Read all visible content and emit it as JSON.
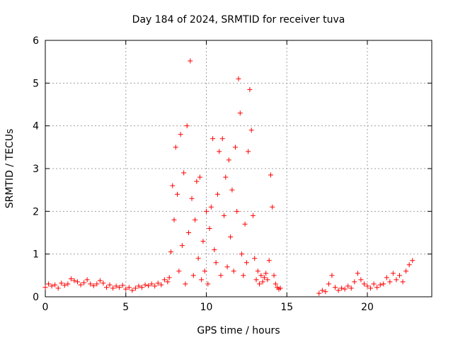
{
  "chart_data": {
    "type": "scatter",
    "title": "Day 184 of 2024, SRMTID for receiver tuva",
    "xlabel": "GPS time / hours",
    "ylabel": "SRMTID / TECUs",
    "xlim": [
      0,
      24
    ],
    "ylim": [
      0,
      6
    ],
    "xticks": [
      0,
      5,
      10,
      15,
      20
    ],
    "xtick_labels": [
      "0",
      "5",
      "10",
      "15",
      "20"
    ],
    "yticks": [
      0,
      1,
      2,
      3,
      4,
      5,
      6
    ],
    "ytick_labels": [
      "0",
      "1",
      "2",
      "3",
      "4",
      "5",
      "6"
    ],
    "grid": true,
    "marker": "+",
    "series": [
      {
        "name": "SRMTID",
        "color": "#ff0000",
        "points": [
          [
            0.0,
            0.22
          ],
          [
            0.2,
            0.3
          ],
          [
            0.4,
            0.25
          ],
          [
            0.6,
            0.28
          ],
          [
            0.8,
            0.2
          ],
          [
            1.0,
            0.32
          ],
          [
            1.2,
            0.27
          ],
          [
            1.4,
            0.3
          ],
          [
            1.6,
            0.42
          ],
          [
            1.8,
            0.38
          ],
          [
            2.0,
            0.35
          ],
          [
            2.2,
            0.28
          ],
          [
            2.4,
            0.33
          ],
          [
            2.6,
            0.4
          ],
          [
            2.8,
            0.3
          ],
          [
            3.0,
            0.26
          ],
          [
            3.2,
            0.3
          ],
          [
            3.4,
            0.38
          ],
          [
            3.6,
            0.32
          ],
          [
            3.8,
            0.22
          ],
          [
            4.0,
            0.28
          ],
          [
            4.2,
            0.2
          ],
          [
            4.4,
            0.25
          ],
          [
            4.6,
            0.22
          ],
          [
            4.8,
            0.27
          ],
          [
            5.0,
            0.18
          ],
          [
            5.2,
            0.22
          ],
          [
            5.4,
            0.15
          ],
          [
            5.6,
            0.2
          ],
          [
            5.8,
            0.25
          ],
          [
            6.0,
            0.22
          ],
          [
            6.2,
            0.28
          ],
          [
            6.4,
            0.26
          ],
          [
            6.6,
            0.3
          ],
          [
            6.8,
            0.25
          ],
          [
            7.0,
            0.32
          ],
          [
            7.2,
            0.28
          ],
          [
            7.4,
            0.4
          ],
          [
            7.6,
            0.35
          ],
          [
            7.7,
            0.45
          ],
          [
            7.8,
            1.05
          ],
          [
            7.9,
            2.6
          ],
          [
            8.0,
            1.8
          ],
          [
            8.1,
            3.5
          ],
          [
            8.2,
            2.4
          ],
          [
            8.3,
            0.6
          ],
          [
            8.4,
            3.8
          ],
          [
            8.5,
            1.2
          ],
          [
            8.6,
            2.9
          ],
          [
            8.7,
            0.3
          ],
          [
            8.8,
            4.0
          ],
          [
            8.9,
            1.5
          ],
          [
            9.0,
            5.52
          ],
          [
            9.1,
            2.3
          ],
          [
            9.2,
            0.5
          ],
          [
            9.3,
            1.8
          ],
          [
            9.4,
            2.7
          ],
          [
            9.5,
            0.9
          ],
          [
            9.6,
            2.8
          ],
          [
            9.7,
            0.4
          ],
          [
            9.8,
            1.3
          ],
          [
            9.9,
            0.6
          ],
          [
            10.0,
            2.0
          ],
          [
            10.1,
            0.3
          ],
          [
            10.2,
            1.6
          ],
          [
            10.3,
            2.1
          ],
          [
            10.4,
            3.7
          ],
          [
            10.5,
            1.1
          ],
          [
            10.6,
            0.8
          ],
          [
            10.7,
            2.4
          ],
          [
            10.8,
            3.4
          ],
          [
            10.9,
            0.5
          ],
          [
            11.0,
            3.7
          ],
          [
            11.1,
            1.9
          ],
          [
            11.2,
            2.8
          ],
          [
            11.3,
            0.7
          ],
          [
            11.4,
            3.2
          ],
          [
            11.5,
            1.4
          ],
          [
            11.6,
            2.5
          ],
          [
            11.7,
            0.6
          ],
          [
            11.8,
            3.5
          ],
          [
            11.9,
            2.0
          ],
          [
            12.0,
            5.1
          ],
          [
            12.1,
            4.3
          ],
          [
            12.2,
            1.0
          ],
          [
            12.3,
            0.5
          ],
          [
            12.4,
            1.7
          ],
          [
            12.5,
            0.8
          ],
          [
            12.6,
            3.4
          ],
          [
            12.7,
            4.85
          ],
          [
            12.8,
            3.9
          ],
          [
            12.9,
            1.9
          ],
          [
            13.0,
            0.9
          ],
          [
            13.1,
            0.4
          ],
          [
            13.2,
            0.6
          ],
          [
            13.3,
            0.3
          ],
          [
            13.4,
            0.5
          ],
          [
            13.5,
            0.35
          ],
          [
            13.6,
            0.45
          ],
          [
            13.7,
            0.55
          ],
          [
            13.8,
            0.4
          ],
          [
            13.9,
            0.85
          ],
          [
            14.0,
            2.85
          ],
          [
            14.1,
            2.1
          ],
          [
            14.2,
            0.5
          ],
          [
            14.3,
            0.3
          ],
          [
            14.4,
            0.22
          ],
          [
            14.5,
            0.18
          ],
          [
            14.6,
            0.2
          ],
          [
            17.0,
            0.08
          ],
          [
            17.2,
            0.15
          ],
          [
            17.4,
            0.12
          ],
          [
            17.6,
            0.3
          ],
          [
            17.8,
            0.5
          ],
          [
            18.0,
            0.22
          ],
          [
            18.2,
            0.15
          ],
          [
            18.4,
            0.2
          ],
          [
            18.6,
            0.18
          ],
          [
            18.8,
            0.25
          ],
          [
            19.0,
            0.2
          ],
          [
            19.2,
            0.35
          ],
          [
            19.4,
            0.55
          ],
          [
            19.6,
            0.4
          ],
          [
            19.8,
            0.3
          ],
          [
            20.0,
            0.25
          ],
          [
            20.2,
            0.2
          ],
          [
            20.4,
            0.3
          ],
          [
            20.6,
            0.22
          ],
          [
            20.8,
            0.28
          ],
          [
            21.0,
            0.3
          ],
          [
            21.2,
            0.45
          ],
          [
            21.4,
            0.35
          ],
          [
            21.6,
            0.55
          ],
          [
            21.8,
            0.4
          ],
          [
            22.0,
            0.5
          ],
          [
            22.2,
            0.35
          ],
          [
            22.4,
            0.6
          ],
          [
            22.6,
            0.75
          ],
          [
            22.8,
            0.85
          ]
        ]
      }
    ]
  }
}
